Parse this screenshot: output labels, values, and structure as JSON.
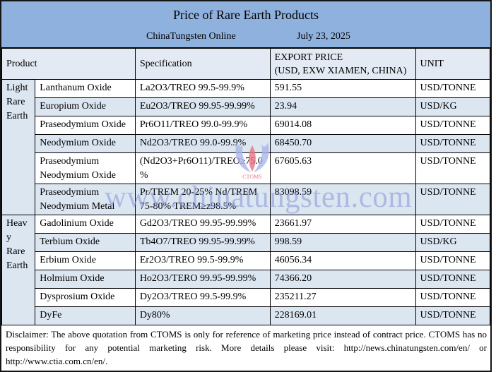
{
  "title": "Price of Rare Earth Products",
  "subtitle": {
    "source": "ChinaTungsten Online",
    "date": "July 23, 2025"
  },
  "header": {
    "product": "Product",
    "specification": "Specification",
    "price_line1": "EXPORT PRICE",
    "price_line2": "(USD, EXW XIAMEN, CHINA)",
    "unit": "UNIT"
  },
  "table": {
    "groups": [
      {
        "label": "Light Rare Earth",
        "rows": [
          {
            "product": "Lanthanum Oxide",
            "spec": "La2O3/TREO 99.5-99.9%",
            "price": "591.55",
            "unit": "USD/TONNE"
          },
          {
            "product": "Europium Oxide",
            "spec": "Eu2O3/TREO 99.95-99.99%",
            "price": "23.94",
            "unit": "USD/KG"
          },
          {
            "product": "Praseodymium Oxide",
            "spec": "Pr6O11/TREO 99.0-99.9%",
            "price": "69014.08",
            "unit": "USD/TONNE"
          },
          {
            "product": "Neodymium Oxide",
            "spec": "Nd2O3/TREO 99.0-99.9%",
            "price": "68450.70",
            "unit": "USD/TONNE"
          },
          {
            "product": "Praseodymium Neodymium Oxide",
            "spec": "(Nd2O3+Pr6O11)/TREO≥75.0%",
            "price": "67605.63",
            "unit": "USD/TONNE"
          },
          {
            "product": "Praseodymium Neodymium Metal",
            "spec": "Pr/TREM 20-25% Nd/TREM 75-80% TREM≥z98.5%",
            "price": "83098.59",
            "unit": "USD/TONNE"
          }
        ]
      },
      {
        "label": "Heavy Rare Earth",
        "rows": [
          {
            "product": "Gadolinium Oxide",
            "spec": "Gd2O3/TREO 99.95-99.99%",
            "price": "23661.97",
            "unit": "USD/TONNE"
          },
          {
            "product": "Terbium Oxide",
            "spec": "Tb4O7/TREO 99.95-99.99%",
            "price": "998.59",
            "unit": "USD/KG"
          },
          {
            "product": "Erbium Oxide",
            "spec": "Er2O3/TREO 99.5-99.9%",
            "price": "46056.34",
            "unit": "USD/TONNE"
          },
          {
            "product": "Holmium Oxide",
            "spec": "Ho2O3/TERO 99.95-99.99%",
            "price": "74366.20",
            "unit": "USD/TONNE"
          },
          {
            "product": "Dysprosium Oxide",
            "spec": "Dy2O3/TREO 99.5-99.9%",
            "price": "235211.27",
            "unit": "USD/TONNE"
          },
          {
            "product": "DyFe",
            "spec": "Dy80%",
            "price": "228169.01",
            "unit": "USD/TONNE"
          }
        ]
      }
    ]
  },
  "disclaimer": "Disclaimer: The above quotation from CTOMS is only for reference of marketing price instead of contract price. CTOMS has no responsibility for any potential marketing risk. More details please visit:  http://news.chinatungsten.com/en/ or http://www.ctia.com.cn/en/.",
  "watermark": {
    "text": "www.chinatungsten.com",
    "logo_label": "CTOMS"
  },
  "colors": {
    "band_blue": "#8FB1DE",
    "row_blue": "#DCE6F1",
    "header_tint": "#E3EAF3",
    "watermark_blue": "#8F9CD8"
  }
}
